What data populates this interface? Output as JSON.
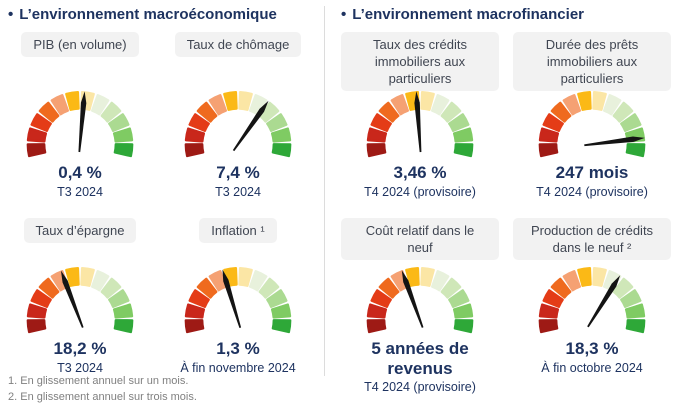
{
  "gauge": {
    "segment_colors": [
      "#9e1a15",
      "#c9271b",
      "#e43c17",
      "#ef6a1e",
      "#f5a173",
      "#fbb916",
      "#fbe6a5",
      "#e8f1dc",
      "#cfe7b8",
      "#abda91",
      "#7fcb63",
      "#2ea838"
    ],
    "needle_color": "#141414"
  },
  "colors": {
    "title_navy": "#1e3360",
    "pill_background": "#f2f2f2",
    "pill_text": "#404652",
    "footnote_gray": "#808080",
    "divider": "#dcdcdc"
  },
  "panels": [
    {
      "bullet": "•",
      "title": "L’environnement macroéconomique",
      "indicators": [
        {
          "label": "PIB (en volume)",
          "value": "0,4 %",
          "caption": "T3 2024",
          "needle_deg": 5
        },
        {
          "label": "Taux de chômage",
          "value": "7,4 %",
          "caption": "T3 2024",
          "needle_deg": 35
        },
        {
          "label": "Taux d’épargne",
          "value": "18,2 %",
          "caption": "T3 2024",
          "needle_deg": -21
        },
        {
          "label": "Inflation ¹",
          "value": "1,3 %",
          "caption": "À fin novembre 2024",
          "needle_deg": -17
        }
      ]
    },
    {
      "bullet": "•",
      "title": "L’environnement macrofinancier",
      "indicators": [
        {
          "label": "Taux des crédits immobiliers aux particuliers",
          "value": "3,46 %",
          "caption": "T4 2024 (provisoire)",
          "needle_deg": -4
        },
        {
          "label": "Durée des prêts immobiliers aux particuliers",
          "value": "247 mois",
          "caption": "T4 2024 (provisoire)",
          "needle_deg": 83
        },
        {
          "label": "Coût relatif dans le neuf",
          "value": "5 années de revenus",
          "caption": "T4 2024 (provisoire)",
          "needle_deg": -20
        },
        {
          "label": "Production de crédits dans le neuf ²",
          "value": "18,3 %",
          "caption": "À fin octobre 2024",
          "needle_deg": 32
        }
      ]
    }
  ],
  "footnotes": [
    "1. En glissement annuel sur un mois.",
    "2. En glissement annuel sur trois mois."
  ],
  "chart_data": [
    {
      "type": "gauge",
      "panel": "L’environnement macroéconomique",
      "title": "PIB (en volume)",
      "value": 0.4,
      "unit": "%",
      "display_value": "0,4 %",
      "period": "T3 2024",
      "needle_deg_from_vertical": 5,
      "scale": "12 segments du rouge (gauche) au vert (droite)"
    },
    {
      "type": "gauge",
      "panel": "L’environnement macroéconomique",
      "title": "Taux de chômage",
      "value": 7.4,
      "unit": "%",
      "display_value": "7,4 %",
      "period": "T3 2024",
      "needle_deg_from_vertical": 35,
      "scale": "12 segments du rouge (gauche) au vert (droite)"
    },
    {
      "type": "gauge",
      "panel": "L’environnement macroéconomique",
      "title": "Taux d’épargne",
      "value": 18.2,
      "unit": "%",
      "display_value": "18,2 %",
      "period": "T3 2024",
      "needle_deg_from_vertical": -21,
      "scale": "12 segments du rouge (gauche) au vert (droite)"
    },
    {
      "type": "gauge",
      "panel": "L’environnement macroéconomique",
      "title": "Inflation ¹",
      "value": 1.3,
      "unit": "%",
      "display_value": "1,3 %",
      "period": "À fin novembre 2024",
      "needle_deg_from_vertical": -17,
      "scale": "12 segments du rouge (gauche) au vert (droite)"
    },
    {
      "type": "gauge",
      "panel": "L’environnement macrofinancier",
      "title": "Taux des crédits immobiliers aux particuliers",
      "value": 3.46,
      "unit": "%",
      "display_value": "3,46 %",
      "period": "T4 2024 (provisoire)",
      "needle_deg_from_vertical": -4,
      "scale": "12 segments du rouge (gauche) au vert (droite)"
    },
    {
      "type": "gauge",
      "panel": "L’environnement macrofinancier",
      "title": "Durée des prêts immobiliers aux particuliers",
      "value": 247,
      "unit": "mois",
      "display_value": "247 mois",
      "period": "T4 2024 (provisoire)",
      "needle_deg_from_vertical": 83,
      "scale": "12 segments du rouge (gauche) au vert (droite)"
    },
    {
      "type": "gauge",
      "panel": "L’environnement macrofinancier",
      "title": "Coût relatif dans le neuf",
      "value": 5,
      "unit": "années de revenus",
      "display_value": "5 années de revenus",
      "period": "T4 2024 (provisoire)",
      "needle_deg_from_vertical": -20,
      "scale": "12 segments du rouge (gauche) au vert (droite)"
    },
    {
      "type": "gauge",
      "panel": "L’environnement macrofinancier",
      "title": "Production de crédits dans le neuf ²",
      "value": 18.3,
      "unit": "%",
      "display_value": "18,3 %",
      "period": "À fin octobre 2024",
      "needle_deg_from_vertical": 32,
      "scale": "12 segments du rouge (gauche) au vert (droite)"
    }
  ]
}
